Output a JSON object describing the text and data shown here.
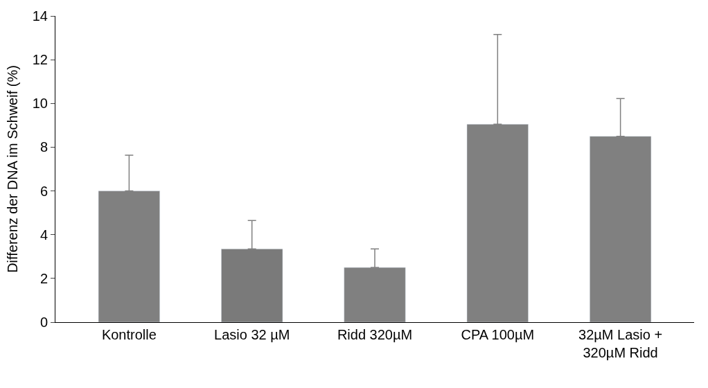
{
  "chart_data": {
    "type": "bar",
    "ylabel": "Differenz der DNA im Schweif (%)",
    "categories": [
      "Kontrolle",
      "Lasio 32 µM",
      "Ridd 320µM",
      "CPA 100µM",
      "32µM Lasio + 320µM Ridd"
    ],
    "values": [
      6.0,
      3.35,
      2.5,
      9.05,
      8.5
    ],
    "errors": [
      [
        6.0,
        7.63
      ],
      [
        3.35,
        4.65
      ],
      [
        2.5,
        3.35
      ],
      [
        9.05,
        13.15
      ],
      [
        8.5,
        10.22
      ]
    ],
    "colors": [
      "#808080",
      "#7a7a7a",
      "#808080",
      "#808080",
      "#808080"
    ],
    "ylim": [
      0,
      14
    ],
    "yticks": [
      0,
      2,
      4,
      6,
      8,
      10,
      12,
      14
    ]
  }
}
